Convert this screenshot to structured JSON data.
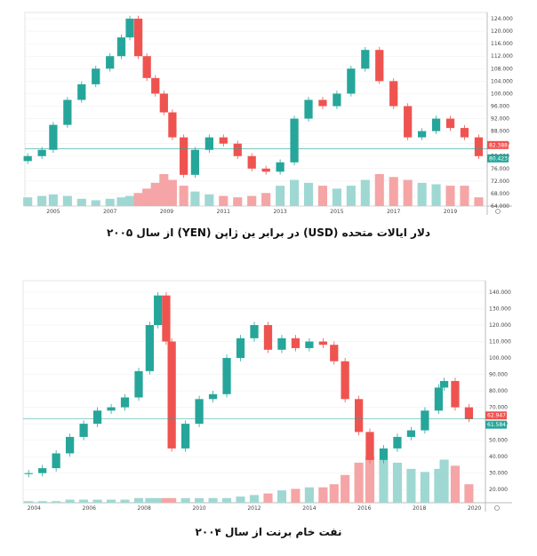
{
  "colors": {
    "up": "#26a69a",
    "down": "#ef5350",
    "vol_up": "#9fd8d2",
    "vol_down": "#f5a5a5",
    "price_line": "#26a69a",
    "grid": "#eeeeee"
  },
  "chart_data": [
    {
      "type": "candlestick",
      "title": "دلار ایالات متحده (USD) در برابر ین ژاپن (YEN) از سال ۲۰۰۵",
      "x_ticks": [
        "2005",
        "2007",
        "2009",
        "2011",
        "2013",
        "2015",
        "2017",
        "2019"
      ],
      "y_ticks": [
        "64.000",
        "68.000",
        "72.000",
        "76.000",
        "80.000",
        "84.000",
        "88.000",
        "92.000",
        "96.000",
        "100.000",
        "104.000",
        "108.000",
        "112.000",
        "116.000",
        "120.000",
        "124.000"
      ],
      "ylim": [
        64,
        126
      ],
      "xlim": [
        2004.0,
        2020.3
      ],
      "price_tags": [
        "82.388",
        "80.423"
      ],
      "price_tag_values": [
        82.4,
        80.4
      ],
      "x": [
        2004.1,
        2004.6,
        2005.0,
        2005.5,
        2006.0,
        2006.5,
        2007.0,
        2007.4,
        2007.7,
        2008.0,
        2008.3,
        2008.6,
        2008.9,
        2009.2,
        2009.6,
        2010.0,
        2010.5,
        2011.0,
        2011.5,
        2012.0,
        2012.5,
        2013.0,
        2013.5,
        2014.0,
        2014.5,
        2015.0,
        2015.5,
        2016.0,
        2016.5,
        2017.0,
        2017.5,
        2018.0,
        2018.5,
        2019.0,
        2019.5,
        2020.0
      ],
      "values": [
        80,
        82,
        90,
        98,
        103,
        108,
        112,
        118,
        124,
        112,
        105,
        100,
        94,
        86,
        74,
        82,
        86,
        84,
        80,
        76,
        75,
        78,
        92,
        98,
        96,
        100,
        108,
        114,
        104,
        96,
        86,
        88,
        92,
        89,
        86,
        80
      ],
      "volume": [
        6,
        7,
        8,
        7,
        5,
        4,
        5,
        6,
        7,
        9,
        12,
        16,
        22,
        18,
        14,
        10,
        8,
        7,
        6,
        7,
        9,
        14,
        18,
        16,
        14,
        12,
        14,
        18,
        22,
        20,
        18,
        16,
        15,
        14,
        14,
        6
      ]
    },
    {
      "type": "candlestick",
      "title": "نفت خام برنت از سال ۲۰۰۴",
      "x_ticks": [
        "2004",
        "2006",
        "2008",
        "2010",
        "2012",
        "2014",
        "2016",
        "2018",
        "2020"
      ],
      "y_ticks": [
        "20.000",
        "30.000",
        "40.000",
        "50.000",
        "60.000",
        "70.000",
        "80.000",
        "90.000",
        "100.000",
        "110.000",
        "120.000",
        "130.000",
        "140.000"
      ],
      "ylim": [
        12,
        147
      ],
      "xlim": [
        2003.6,
        2020.4
      ],
      "price_tags": [
        "62.947",
        "61.584"
      ],
      "price_tag_values": [
        62.9,
        61.6
      ],
      "x": [
        2003.8,
        2004.3,
        2004.8,
        2005.3,
        2005.8,
        2006.3,
        2006.8,
        2007.3,
        2007.8,
        2008.2,
        2008.5,
        2008.8,
        2009.0,
        2009.5,
        2010.0,
        2010.5,
        2011.0,
        2011.5,
        2012.0,
        2012.5,
        2013.0,
        2013.5,
        2014.0,
        2014.5,
        2014.9,
        2015.3,
        2015.8,
        2016.2,
        2016.7,
        2017.2,
        2017.7,
        2018.2,
        2018.7,
        2018.9,
        2019.3,
        2019.8
      ],
      "values": [
        30,
        33,
        42,
        52,
        60,
        68,
        70,
        76,
        92,
        120,
        138,
        110,
        45,
        60,
        75,
        78,
        100,
        112,
        120,
        105,
        112,
        106,
        110,
        108,
        98,
        75,
        55,
        38,
        45,
        52,
        56,
        68,
        82,
        86,
        70,
        63
      ],
      "volume": [
        1,
        1,
        1,
        2,
        2,
        2,
        2,
        2,
        3,
        3,
        3,
        3,
        3,
        3,
        3,
        3,
        3,
        4,
        5,
        6,
        8,
        9,
        10,
        10,
        12,
        18,
        26,
        30,
        28,
        26,
        22,
        20,
        22,
        28,
        24,
        12
      ]
    }
  ]
}
